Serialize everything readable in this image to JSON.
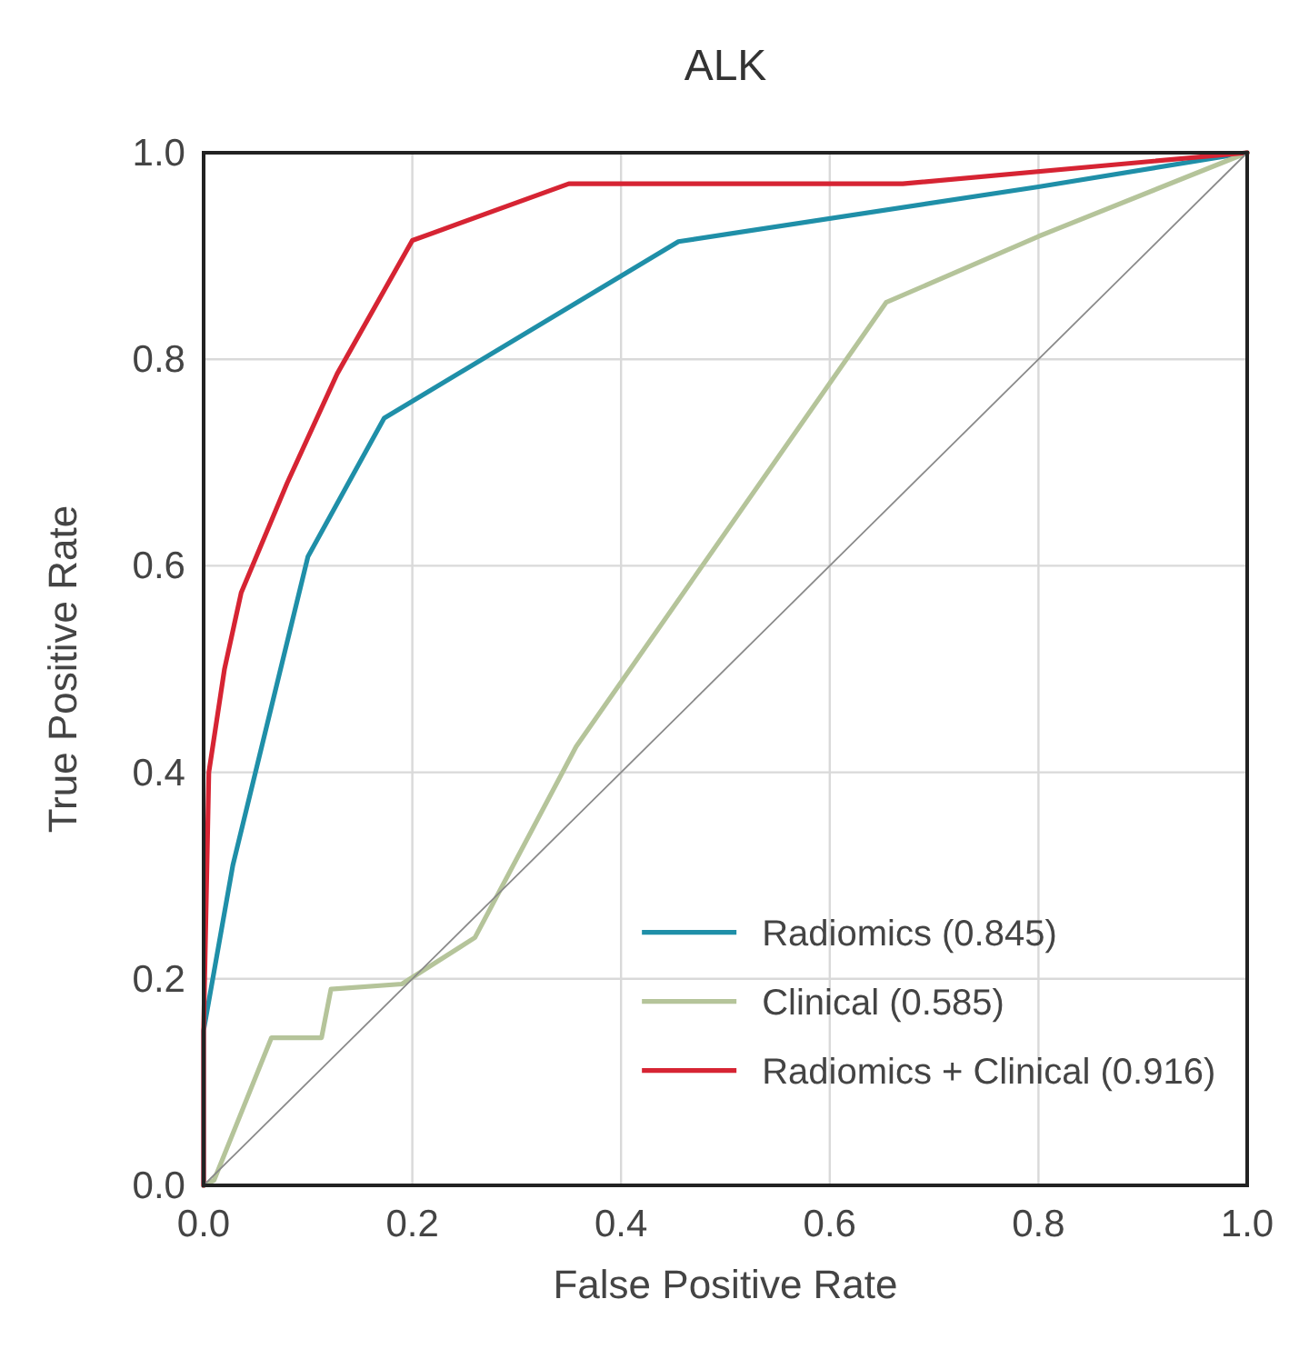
{
  "chart_data": {
    "type": "line",
    "title": "ALK",
    "xlabel": "False Positive Rate",
    "ylabel": "True Positive Rate",
    "xlim": [
      0,
      1
    ],
    "ylim": [
      0,
      1
    ],
    "xticks": [
      {
        "value": 0,
        "label": "0.0"
      },
      {
        "value": 0.2,
        "label": "0.2"
      },
      {
        "value": 0.4,
        "label": "0.4"
      },
      {
        "value": 0.6,
        "label": "0.6"
      },
      {
        "value": 0.8,
        "label": "0.8"
      },
      {
        "value": 1,
        "label": "1.0"
      }
    ],
    "yticks": [
      {
        "value": 0,
        "label": "0.0"
      },
      {
        "value": 0.2,
        "label": "0.2"
      },
      {
        "value": 0.4,
        "label": "0.4"
      },
      {
        "value": 0.6,
        "label": "0.6"
      },
      {
        "value": 0.8,
        "label": "0.8"
      },
      {
        "value": 1,
        "label": "1.0"
      }
    ],
    "grid": true,
    "legend": "bottom right",
    "marker": "none",
    "line_style": "solid",
    "series": [
      {
        "name": "Radiomics (0.845)",
        "color": "#1f8fa8",
        "x": [
          0,
          0,
          0.028,
          0.1,
          0.173,
          0.455,
          0.8,
          1
        ],
        "values": [
          0,
          0.15,
          0.31,
          0.609,
          0.743,
          0.914,
          0.967,
          1
        ]
      },
      {
        "name": "Clinical (0.585)",
        "color": "#b5c49a",
        "x": [
          0,
          0.01,
          0.065,
          0.113,
          0.122,
          0.19,
          0.26,
          0.357,
          0.654,
          0.8,
          1
        ],
        "values": [
          0,
          0.005,
          0.143,
          0.143,
          0.19,
          0.195,
          0.24,
          0.425,
          0.855,
          0.919,
          1
        ]
      },
      {
        "name": "Radiomics + Clinical (0.916)",
        "color": "#d62433",
        "x": [
          0,
          0,
          0.005,
          0.02,
          0.036,
          0.08,
          0.128,
          0.2,
          0.35,
          0.67,
          1
        ],
        "values": [
          0,
          0.15,
          0.4,
          0.5,
          0.574,
          0.68,
          0.786,
          0.915,
          0.97,
          0.97,
          1
        ]
      },
      {
        "color": "#8a8a8a",
        "x": [
          0,
          1
        ],
        "values": [
          0,
          1
        ]
      }
    ]
  }
}
